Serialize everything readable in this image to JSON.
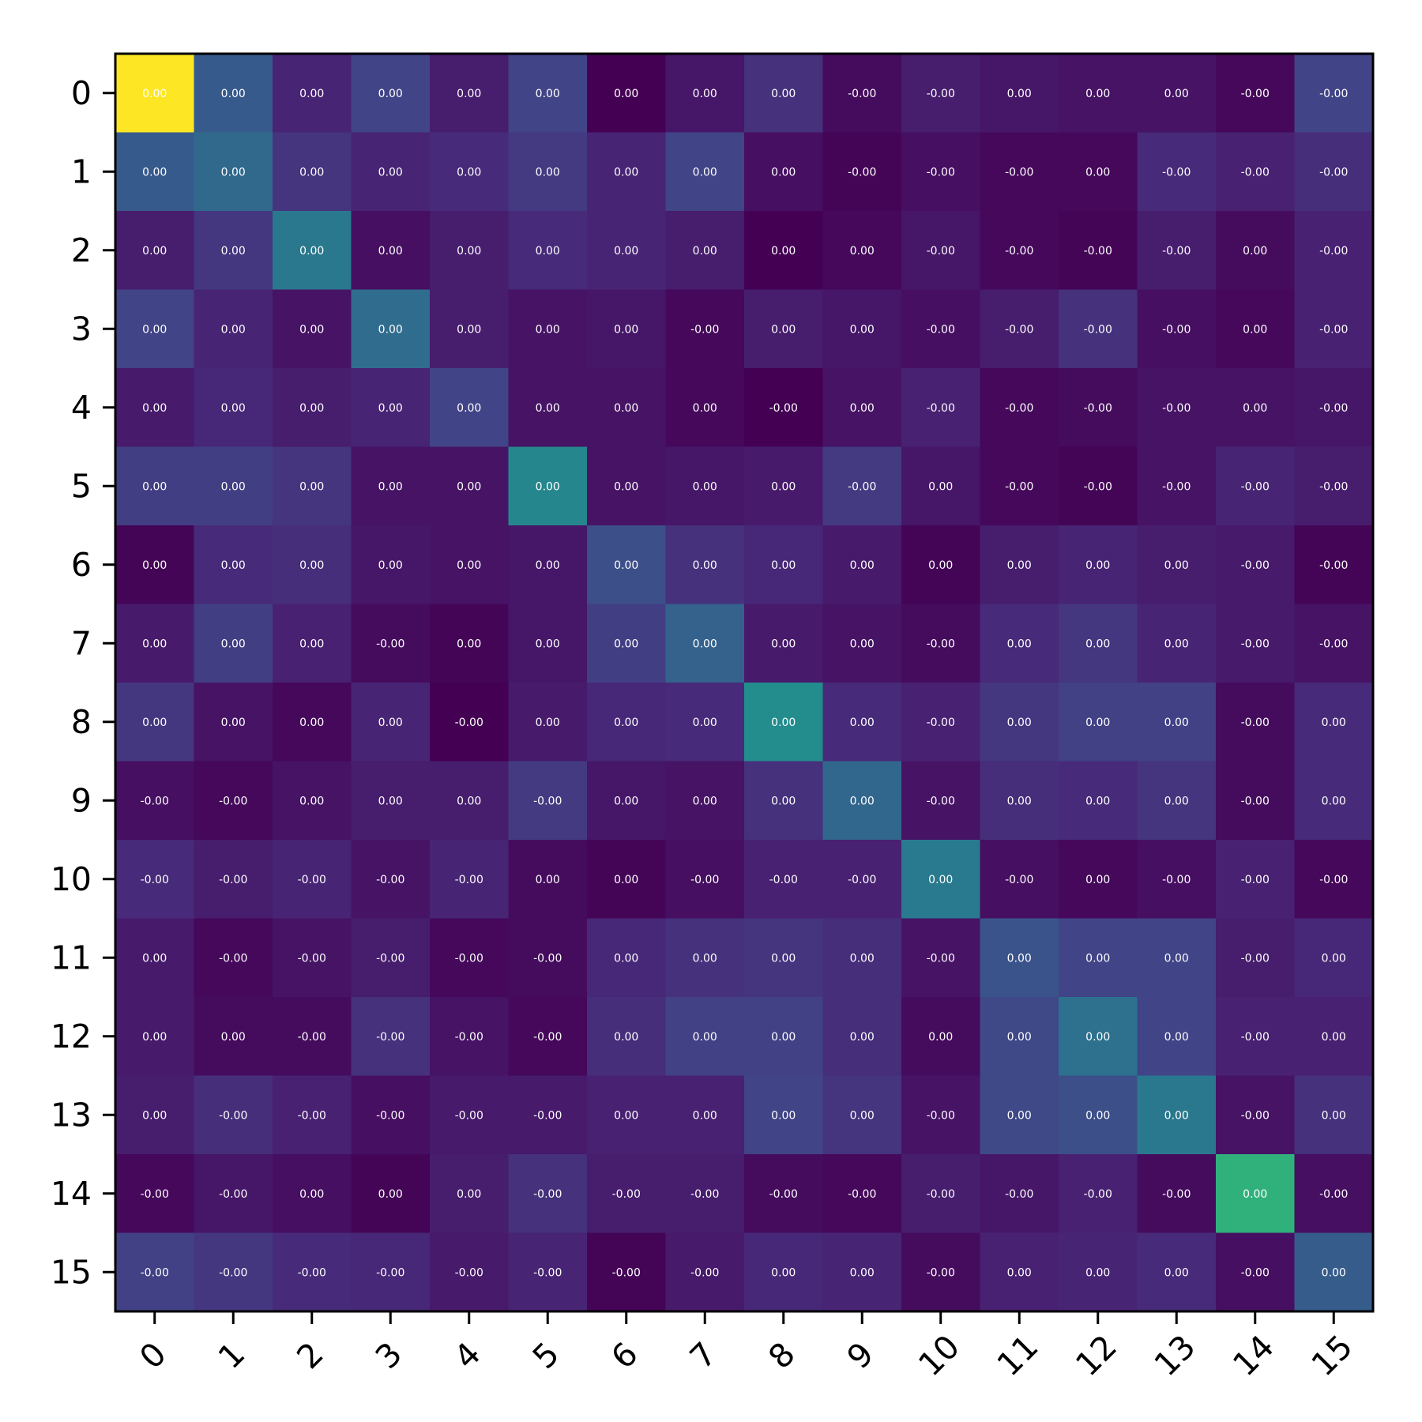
{
  "chart_data": {
    "type": "heatmap",
    "title": "",
    "xlabel": "",
    "ylabel": "",
    "x_tick_labels": [
      "0",
      "1",
      "2",
      "3",
      "4",
      "5",
      "6",
      "7",
      "8",
      "9",
      "10",
      "11",
      "12",
      "13",
      "14",
      "15"
    ],
    "y_tick_labels": [
      "0",
      "1",
      "2",
      "3",
      "4",
      "5",
      "6",
      "7",
      "8",
      "9",
      "10",
      "11",
      "12",
      "13",
      "14",
      "15"
    ],
    "colormap": "viridis",
    "colorbar": false,
    "x_tick_label_rotation_deg": 45,
    "intensity_note": "values are relative colour intensity 0..1 read from the viridis colormap",
    "intensity": [
      [
        1.0,
        0.28,
        0.1,
        0.2,
        0.08,
        0.2,
        0.0,
        0.06,
        0.14,
        0.03,
        0.08,
        0.06,
        0.05,
        0.05,
        0.02,
        0.2
      ],
      [
        0.28,
        0.34,
        0.15,
        0.1,
        0.12,
        0.17,
        0.1,
        0.2,
        0.04,
        0.01,
        0.04,
        0.02,
        0.02,
        0.12,
        0.09,
        0.13
      ],
      [
        0.08,
        0.16,
        0.4,
        0.04,
        0.08,
        0.12,
        0.1,
        0.08,
        0.0,
        0.02,
        0.06,
        0.02,
        0.01,
        0.08,
        0.03,
        0.09
      ],
      [
        0.2,
        0.1,
        0.05,
        0.35,
        0.08,
        0.05,
        0.06,
        0.02,
        0.08,
        0.06,
        0.04,
        0.08,
        0.14,
        0.04,
        0.02,
        0.09
      ],
      [
        0.07,
        0.11,
        0.08,
        0.1,
        0.2,
        0.05,
        0.05,
        0.02,
        0.0,
        0.05,
        0.09,
        0.02,
        0.03,
        0.05,
        0.05,
        0.06
      ],
      [
        0.18,
        0.18,
        0.15,
        0.05,
        0.05,
        0.46,
        0.05,
        0.06,
        0.07,
        0.17,
        0.06,
        0.02,
        0.01,
        0.05,
        0.1,
        0.08
      ],
      [
        0.01,
        0.12,
        0.13,
        0.06,
        0.05,
        0.06,
        0.24,
        0.14,
        0.11,
        0.07,
        0.01,
        0.08,
        0.1,
        0.08,
        0.07,
        0.01
      ],
      [
        0.07,
        0.18,
        0.09,
        0.03,
        0.01,
        0.06,
        0.18,
        0.31,
        0.07,
        0.05,
        0.03,
        0.12,
        0.16,
        0.1,
        0.07,
        0.05
      ],
      [
        0.16,
        0.05,
        0.02,
        0.1,
        0.0,
        0.07,
        0.11,
        0.12,
        0.48,
        0.12,
        0.09,
        0.16,
        0.19,
        0.19,
        0.03,
        0.12
      ],
      [
        0.04,
        0.02,
        0.05,
        0.08,
        0.08,
        0.17,
        0.06,
        0.05,
        0.14,
        0.33,
        0.05,
        0.13,
        0.12,
        0.15,
        0.03,
        0.12
      ],
      [
        0.12,
        0.08,
        0.1,
        0.05,
        0.1,
        0.03,
        0.01,
        0.04,
        0.09,
        0.09,
        0.41,
        0.04,
        0.02,
        0.04,
        0.09,
        0.02
      ],
      [
        0.07,
        0.02,
        0.05,
        0.08,
        0.02,
        0.03,
        0.11,
        0.14,
        0.15,
        0.13,
        0.05,
        0.26,
        0.2,
        0.2,
        0.08,
        0.11
      ],
      [
        0.07,
        0.03,
        0.03,
        0.14,
        0.05,
        0.02,
        0.13,
        0.19,
        0.19,
        0.13,
        0.03,
        0.22,
        0.37,
        0.2,
        0.09,
        0.09
      ],
      [
        0.08,
        0.13,
        0.09,
        0.04,
        0.07,
        0.07,
        0.09,
        0.09,
        0.2,
        0.15,
        0.05,
        0.22,
        0.24,
        0.4,
        0.05,
        0.14
      ],
      [
        0.02,
        0.06,
        0.04,
        0.01,
        0.08,
        0.14,
        0.08,
        0.08,
        0.03,
        0.02,
        0.08,
        0.06,
        0.09,
        0.03,
        0.64,
        0.04
      ],
      [
        0.19,
        0.16,
        0.12,
        0.11,
        0.07,
        0.1,
        0.01,
        0.07,
        0.11,
        0.1,
        0.03,
        0.09,
        0.1,
        0.12,
        0.04,
        0.29
      ]
    ],
    "cell_labels": [
      [
        "0.00",
        "0.00",
        "0.00",
        "0.00",
        "0.00",
        "0.00",
        "0.00",
        "0.00",
        "0.00",
        "-0.00",
        "-0.00",
        "0.00",
        "0.00",
        "0.00",
        "-0.00",
        "-0.00"
      ],
      [
        "0.00",
        "0.00",
        "0.00",
        "0.00",
        "0.00",
        "0.00",
        "0.00",
        "0.00",
        "0.00",
        "-0.00",
        "-0.00",
        "-0.00",
        "0.00",
        "-0.00",
        "-0.00",
        "-0.00"
      ],
      [
        "0.00",
        "0.00",
        "0.00",
        "0.00",
        "0.00",
        "0.00",
        "0.00",
        "0.00",
        "0.00",
        "0.00",
        "-0.00",
        "-0.00",
        "-0.00",
        "-0.00",
        "0.00",
        "-0.00"
      ],
      [
        "0.00",
        "0.00",
        "0.00",
        "0.00",
        "0.00",
        "0.00",
        "0.00",
        "-0.00",
        "0.00",
        "0.00",
        "-0.00",
        "-0.00",
        "-0.00",
        "-0.00",
        "0.00",
        "-0.00"
      ],
      [
        "0.00",
        "0.00",
        "0.00",
        "0.00",
        "0.00",
        "0.00",
        "0.00",
        "0.00",
        "-0.00",
        "0.00",
        "-0.00",
        "-0.00",
        "-0.00",
        "-0.00",
        "0.00",
        "-0.00"
      ],
      [
        "0.00",
        "0.00",
        "0.00",
        "0.00",
        "0.00",
        "0.00",
        "0.00",
        "0.00",
        "0.00",
        "-0.00",
        "0.00",
        "-0.00",
        "-0.00",
        "-0.00",
        "-0.00",
        "-0.00"
      ],
      [
        "0.00",
        "0.00",
        "0.00",
        "0.00",
        "0.00",
        "0.00",
        "0.00",
        "0.00",
        "0.00",
        "0.00",
        "0.00",
        "0.00",
        "0.00",
        "0.00",
        "-0.00",
        "-0.00"
      ],
      [
        "0.00",
        "0.00",
        "0.00",
        "-0.00",
        "0.00",
        "0.00",
        "0.00",
        "0.00",
        "0.00",
        "0.00",
        "-0.00",
        "0.00",
        "0.00",
        "0.00",
        "-0.00",
        "-0.00"
      ],
      [
        "0.00",
        "0.00",
        "0.00",
        "0.00",
        "-0.00",
        "0.00",
        "0.00",
        "0.00",
        "0.00",
        "0.00",
        "-0.00",
        "0.00",
        "0.00",
        "0.00",
        "-0.00",
        "0.00"
      ],
      [
        "-0.00",
        "-0.00",
        "0.00",
        "0.00",
        "0.00",
        "-0.00",
        "0.00",
        "0.00",
        "0.00",
        "0.00",
        "-0.00",
        "0.00",
        "0.00",
        "0.00",
        "-0.00",
        "0.00"
      ],
      [
        "-0.00",
        "-0.00",
        "-0.00",
        "-0.00",
        "-0.00",
        "0.00",
        "0.00",
        "-0.00",
        "-0.00",
        "-0.00",
        "0.00",
        "-0.00",
        "0.00",
        "-0.00",
        "-0.00",
        "-0.00"
      ],
      [
        "0.00",
        "-0.00",
        "-0.00",
        "-0.00",
        "-0.00",
        "-0.00",
        "0.00",
        "0.00",
        "0.00",
        "0.00",
        "-0.00",
        "0.00",
        "0.00",
        "0.00",
        "-0.00",
        "0.00"
      ],
      [
        "0.00",
        "0.00",
        "-0.00",
        "-0.00",
        "-0.00",
        "-0.00",
        "0.00",
        "0.00",
        "0.00",
        "0.00",
        "0.00",
        "0.00",
        "0.00",
        "0.00",
        "-0.00",
        "0.00"
      ],
      [
        "0.00",
        "-0.00",
        "-0.00",
        "-0.00",
        "-0.00",
        "-0.00",
        "0.00",
        "0.00",
        "0.00",
        "0.00",
        "-0.00",
        "0.00",
        "0.00",
        "0.00",
        "-0.00",
        "0.00"
      ],
      [
        "-0.00",
        "-0.00",
        "0.00",
        "0.00",
        "0.00",
        "-0.00",
        "-0.00",
        "-0.00",
        "-0.00",
        "-0.00",
        "-0.00",
        "-0.00",
        "-0.00",
        "-0.00",
        "0.00",
        "-0.00"
      ],
      [
        "-0.00",
        "-0.00",
        "-0.00",
        "-0.00",
        "-0.00",
        "-0.00",
        "-0.00",
        "-0.00",
        "0.00",
        "0.00",
        "-0.00",
        "0.00",
        "0.00",
        "0.00",
        "-0.00",
        "0.00"
      ]
    ],
    "cell_label_color": "#ffffff",
    "frame_color": "#000000",
    "grid": false
  }
}
